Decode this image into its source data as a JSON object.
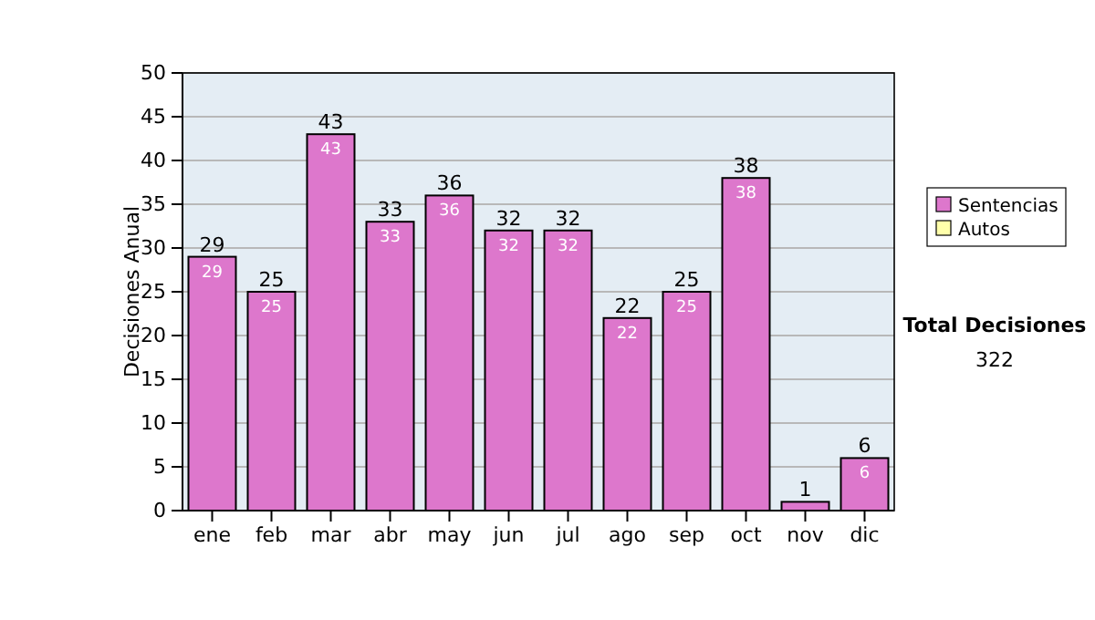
{
  "chart_data": {
    "type": "bar",
    "ylabel": "Decisiones Anual",
    "categories": [
      "ene",
      "feb",
      "mar",
      "abr",
      "may",
      "jun",
      "jul",
      "ago",
      "sep",
      "oct",
      "nov",
      "dic"
    ],
    "series": [
      {
        "name": "Sentencias",
        "color": "#dd77cc",
        "values": [
          29,
          25,
          43,
          33,
          36,
          32,
          32,
          22,
          25,
          38,
          1,
          6
        ],
        "value_labels": [
          "29",
          "25",
          "43",
          "33",
          "36",
          "32",
          "32",
          "22",
          "25",
          "38",
          null,
          "6"
        ]
      },
      {
        "name": "Autos",
        "color": "#ffffaa",
        "values": [
          null,
          null,
          null,
          null,
          null,
          null,
          null,
          null,
          null,
          null,
          null,
          null
        ]
      }
    ],
    "ylim": [
      0,
      50
    ],
    "yticks": [
      0,
      5,
      10,
      15,
      20,
      25,
      30,
      35,
      40,
      45,
      50
    ],
    "grid": "y",
    "legend": "right",
    "totals": [
      "29",
      "25",
      "43",
      "33",
      "36",
      "32",
      "32",
      "22",
      "25",
      "38",
      "1",
      "6"
    ],
    "annotations": [
      "Total Decisiones",
      "322"
    ]
  }
}
